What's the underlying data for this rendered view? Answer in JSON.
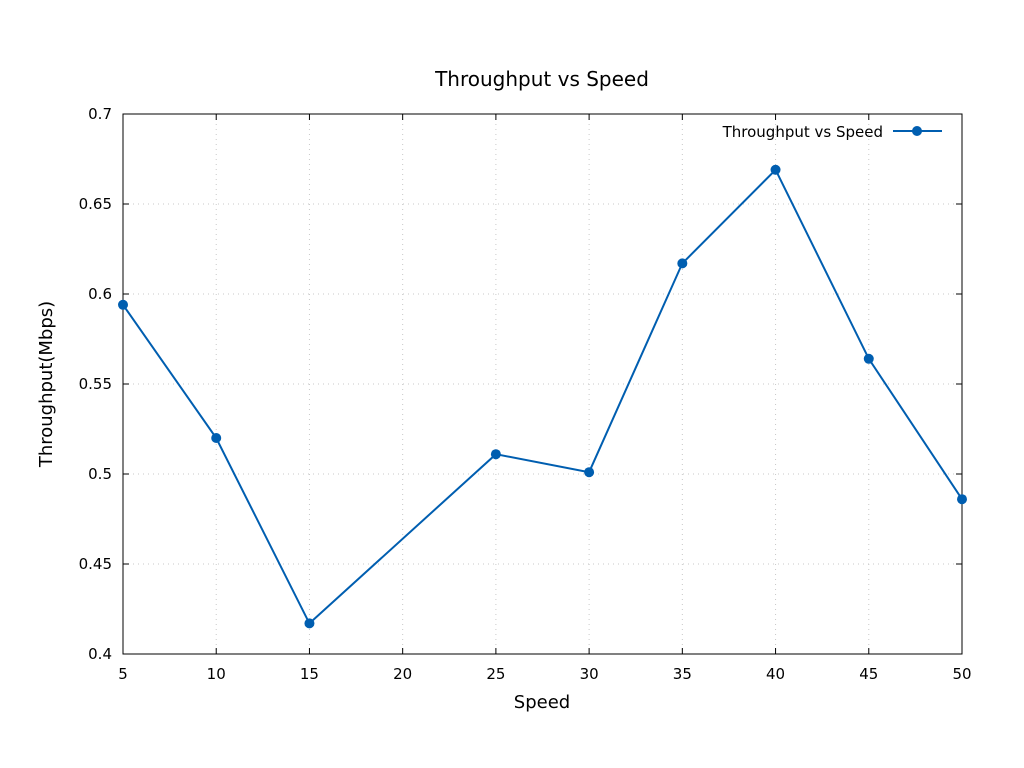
{
  "chart_data": {
    "type": "line",
    "title": "Throughput vs Speed",
    "xlabel": "Speed",
    "ylabel": "Throughput(Mbps)",
    "xlim": [
      5,
      50
    ],
    "ylim": [
      0.4,
      0.7
    ],
    "xticks": [
      "5",
      "10",
      "15",
      "20",
      "25",
      "30",
      "35",
      "40",
      "45",
      "50"
    ],
    "yticks": [
      "0.4",
      "0.45",
      "0.5",
      "0.55",
      "0.6",
      "0.65",
      "0.7"
    ],
    "grid": true,
    "legend_position": "top-right",
    "series": [
      {
        "name": "Throughput vs Speed",
        "color": "#005eb0",
        "marker": "circle",
        "x": [
          5,
          10,
          15,
          25,
          30,
          35,
          40,
          45,
          50
        ],
        "y": [
          0.594,
          0.52,
          0.417,
          0.511,
          0.501,
          0.617,
          0.669,
          0.564,
          0.486
        ]
      }
    ]
  }
}
